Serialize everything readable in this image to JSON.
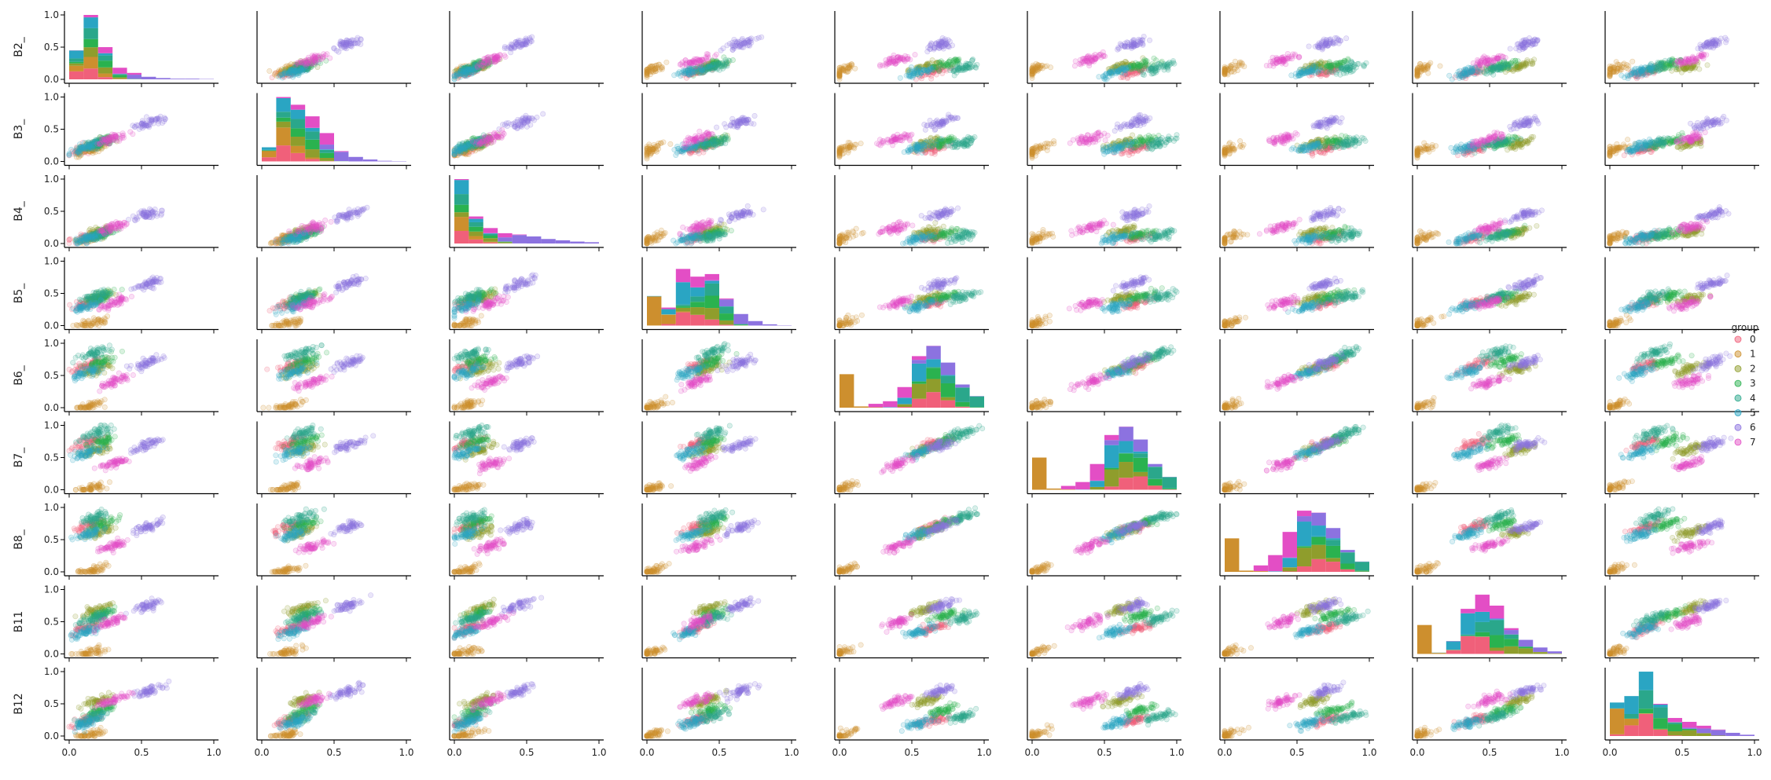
{
  "chart_data": {
    "type": "scatter",
    "kind": "pairplot",
    "variables": [
      "B2_",
      "B3_",
      "B4_",
      "B5_",
      "B6_",
      "B7_",
      "B8_",
      "B11",
      "B12"
    ],
    "diagonal": "stacked_histogram",
    "axis_range": [
      0,
      1
    ],
    "tick_values": [
      0.0,
      0.5,
      1.0
    ],
    "tick_labels": [
      "0.0",
      "0.5",
      "1.0"
    ],
    "grid": false,
    "legend": {
      "title": "group",
      "placement": "right",
      "entries": [
        "0",
        "1",
        "2",
        "3",
        "4",
        "5",
        "6",
        "7"
      ]
    },
    "group_colors": [
      "#f0607a",
      "#cd8f2e",
      "#8f9d2c",
      "#2ab24f",
      "#2aa78b",
      "#2aa5c3",
      "#8c72e0",
      "#e34ec5"
    ],
    "group_profiles": [
      {
        "group": "0",
        "B2_": 0.12,
        "B3_": 0.2,
        "B4_": 0.1,
        "B5_": 0.35,
        "B6_": 0.65,
        "B7_": 0.72,
        "B8_": 0.7,
        "B11": 0.4,
        "B12": 0.25
      },
      {
        "group": "1",
        "B2_": 0.15,
        "B3_": 0.18,
        "B4_": 0.08,
        "B5_": 0.03,
        "B6_": 0.02,
        "B7_": 0.02,
        "B8_": 0.02,
        "B11": 0.02,
        "B12": 0.02
      },
      {
        "group": "2",
        "B2_": 0.2,
        "B3_": 0.28,
        "B4_": 0.18,
        "B5_": 0.42,
        "B6_": 0.6,
        "B7_": 0.62,
        "B8_": 0.62,
        "B11": 0.7,
        "B12": 0.55
      },
      {
        "group": "3",
        "B2_": 0.22,
        "B3_": 0.3,
        "B4_": 0.15,
        "B5_": 0.45,
        "B6_": 0.72,
        "B7_": 0.75,
        "B8_": 0.75,
        "B11": 0.6,
        "B12": 0.4
      },
      {
        "group": "4",
        "B2_": 0.18,
        "B3_": 0.28,
        "B4_": 0.12,
        "B5_": 0.45,
        "B6_": 0.85,
        "B7_": 0.88,
        "B8_": 0.85,
        "B11": 0.55,
        "B12": 0.3
      },
      {
        "group": "5",
        "B2_": 0.12,
        "B3_": 0.22,
        "B4_": 0.08,
        "B5_": 0.3,
        "B6_": 0.55,
        "B7_": 0.58,
        "B8_": 0.58,
        "B11": 0.35,
        "B12": 0.2
      },
      {
        "group": "6",
        "B2_": 0.55,
        "B3_": 0.6,
        "B4_": 0.45,
        "B5_": 0.65,
        "B6_": 0.7,
        "B7_": 0.7,
        "B8_": 0.7,
        "B11": 0.75,
        "B12": 0.7
      },
      {
        "group": "7",
        "B2_": 0.3,
        "B3_": 0.35,
        "B4_": 0.25,
        "B5_": 0.35,
        "B6_": 0.4,
        "B7_": 0.4,
        "B8_": 0.4,
        "B11": 0.5,
        "B12": 0.55
      }
    ],
    "diagonal_histograms": {
      "B2_": {
        "bins": [
          0.0,
          0.1,
          0.2,
          0.3,
          0.4,
          0.5,
          0.6,
          0.7,
          0.8,
          0.9,
          1.0
        ],
        "total_counts_scaled": [
          0.45,
          1.0,
          0.5,
          0.18,
          0.1,
          0.04,
          0.02,
          0.01,
          0.01,
          0.005
        ]
      },
      "B3_": {
        "bins": [
          0.0,
          0.1,
          0.2,
          0.3,
          0.4,
          0.5,
          0.6,
          0.7,
          0.8,
          0.9,
          1.0
        ],
        "total_counts_scaled": [
          0.22,
          1.0,
          0.88,
          0.7,
          0.44,
          0.16,
          0.07,
          0.03,
          0.01,
          0.005
        ]
      },
      "B4_": {
        "bins": [
          0.0,
          0.1,
          0.2,
          0.3,
          0.4,
          0.5,
          0.6,
          0.7,
          0.8,
          0.9,
          1.0
        ],
        "total_counts_scaled": [
          1.0,
          0.42,
          0.24,
          0.16,
          0.14,
          0.11,
          0.07,
          0.05,
          0.03,
          0.02
        ]
      },
      "B5_": {
        "bins": [
          0.0,
          0.1,
          0.2,
          0.3,
          0.4,
          0.5,
          0.6,
          0.7,
          0.8,
          0.9,
          1.0
        ],
        "total_counts_scaled": [
          0.46,
          0.28,
          0.88,
          0.76,
          0.8,
          0.42,
          0.18,
          0.07,
          0.02,
          0.005
        ]
      },
      "B6_": {
        "bins": [
          0.0,
          0.1,
          0.2,
          0.3,
          0.4,
          0.5,
          0.6,
          0.7,
          0.8,
          0.9,
          1.0
        ],
        "total_counts_scaled": [
          0.52,
          0.02,
          0.06,
          0.1,
          0.32,
          0.8,
          0.96,
          0.7,
          0.36,
          0.18
        ]
      },
      "B7_": {
        "bins": [
          0.0,
          0.1,
          0.2,
          0.3,
          0.4,
          0.5,
          0.6,
          0.7,
          0.8,
          0.9,
          1.0
        ],
        "total_counts_scaled": [
          0.5,
          0.02,
          0.06,
          0.12,
          0.4,
          0.85,
          0.98,
          0.78,
          0.4,
          0.2
        ]
      },
      "B8_": {
        "bins": [
          0.0,
          0.1,
          0.2,
          0.3,
          0.4,
          0.5,
          0.6,
          0.7,
          0.8,
          0.9,
          1.0
        ],
        "total_counts_scaled": [
          0.52,
          0.02,
          0.1,
          0.26,
          0.62,
          0.95,
          0.92,
          0.68,
          0.34,
          0.16
        ]
      },
      "B11": {
        "bins": [
          0.0,
          0.1,
          0.2,
          0.3,
          0.4,
          0.5,
          0.6,
          0.7,
          0.8,
          0.9,
          1.0
        ],
        "total_counts_scaled": [
          0.45,
          0.02,
          0.2,
          0.7,
          0.92,
          0.75,
          0.4,
          0.22,
          0.1,
          0.04
        ]
      },
      "B12": {
        "bins": [
          0.0,
          0.1,
          0.2,
          0.3,
          0.4,
          0.5,
          0.6,
          0.7,
          0.8,
          0.9,
          1.0
        ],
        "total_counts_scaled": [
          0.52,
          0.62,
          1.0,
          0.5,
          0.28,
          0.22,
          0.16,
          0.1,
          0.05,
          0.02
        ]
      }
    }
  }
}
